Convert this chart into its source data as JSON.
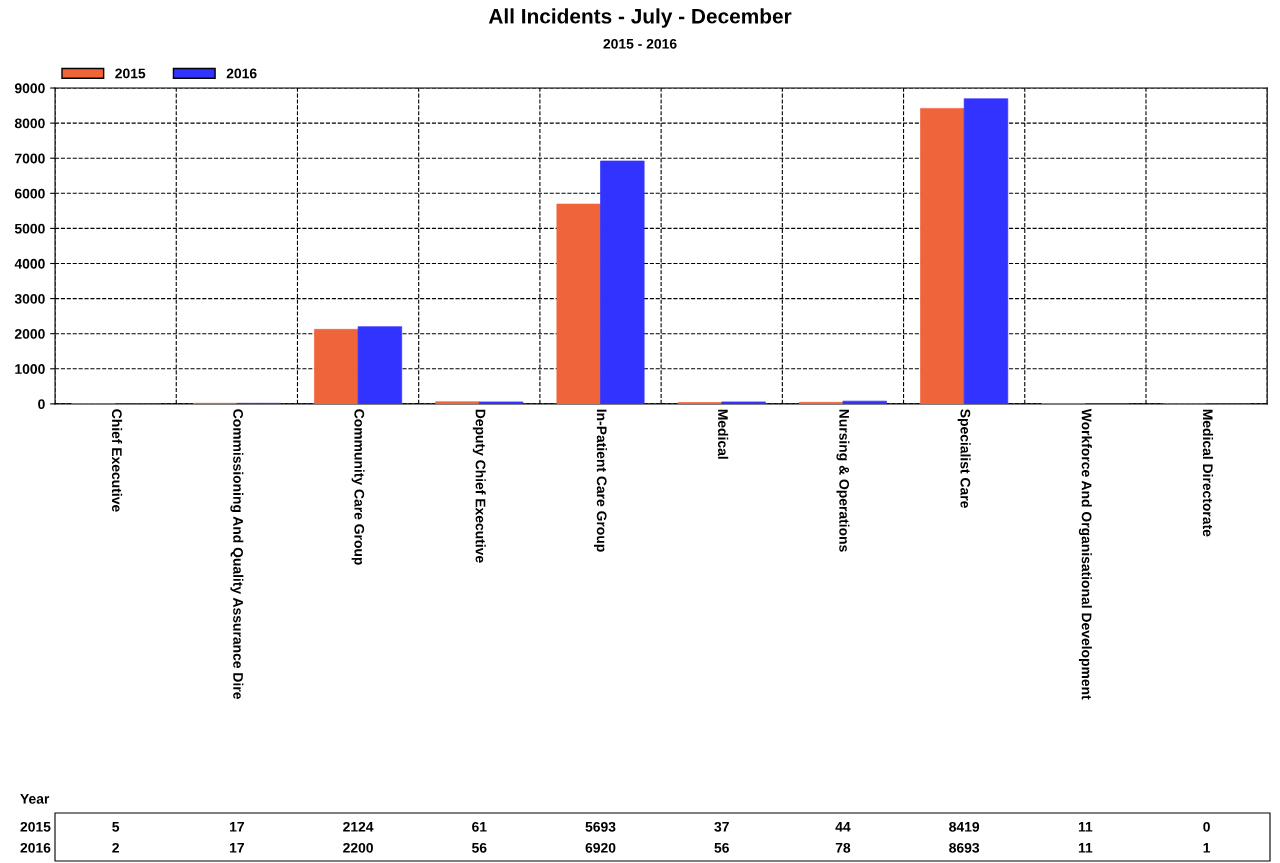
{
  "chart_data": {
    "type": "bar",
    "title": "All Incidents - July - December",
    "subtitle": "2015 - 2016",
    "legend_title": "Year",
    "categories": [
      "Chief Executive",
      "Commissioning And Quality Assurance Dire",
      "Community Care Group",
      "Deputy Chief Executive",
      "In-Patient Care Group",
      "Medical",
      "Nursing & Operations",
      "Specialist Care",
      "Workforce And Organisational Development",
      "Medical Directorate"
    ],
    "series": [
      {
        "name": "2015",
        "color": "#f0643c",
        "values": [
          5,
          17,
          2124,
          61,
          5693,
          37,
          44,
          8419,
          11,
          0
        ]
      },
      {
        "name": "2016",
        "color": "#3333ff",
        "values": [
          2,
          17,
          2200,
          56,
          6920,
          56,
          78,
          8693,
          11,
          1
        ]
      }
    ],
    "ylim": [
      0,
      9000
    ],
    "yticks": [
      0,
      1000,
      2000,
      3000,
      4000,
      5000,
      6000,
      7000,
      8000,
      9000
    ],
    "grid": true,
    "legend": "top left",
    "data_labels": true
  }
}
